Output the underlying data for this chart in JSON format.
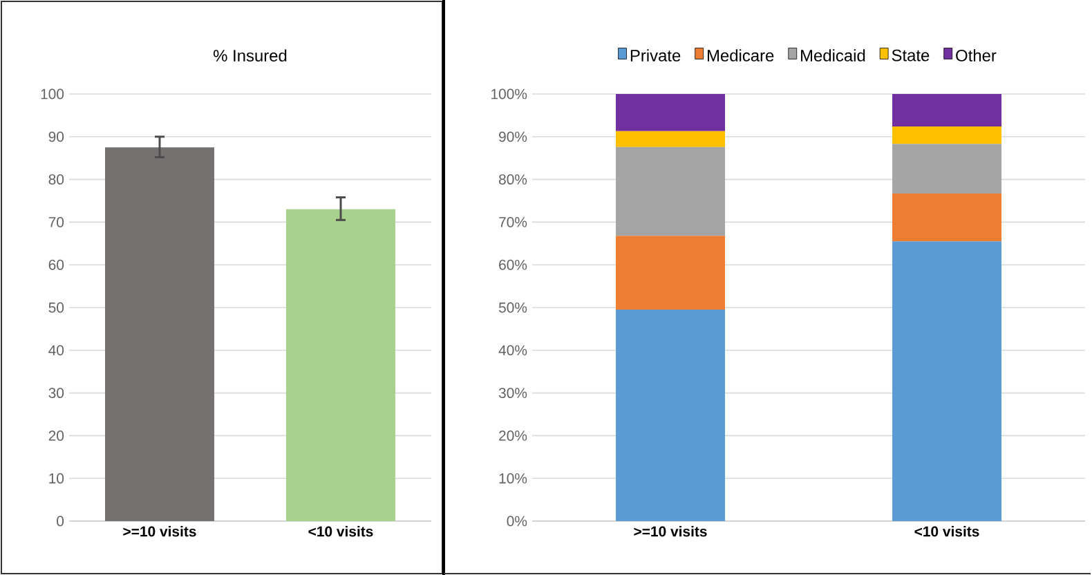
{
  "chart_data": [
    {
      "type": "bar",
      "title": "% Insured",
      "categories": [
        ">=10 visits",
        "<10 visits"
      ],
      "values": [
        87.5,
        73
      ],
      "colors": [
        "#767171",
        "#a9d18e"
      ],
      "errors": [
        [
          85.2,
          90
        ],
        [
          70.5,
          75.8
        ]
      ],
      "ylim": [
        0,
        100
      ],
      "yticks": [
        0,
        10,
        20,
        30,
        40,
        50,
        60,
        70,
        80,
        90,
        100
      ],
      "grid": "y"
    },
    {
      "type": "bar",
      "stacked": true,
      "categories": [
        ">=10 visits",
        "<10 visits"
      ],
      "series": [
        {
          "name": "Private",
          "color": "#5b9bd5",
          "values": [
            49.5,
            65.5
          ]
        },
        {
          "name": "Medicare",
          "color": "#ed7d31",
          "values": [
            17.3,
            11.2
          ]
        },
        {
          "name": "Medicaid",
          "color": "#a5a5a5",
          "values": [
            20.8,
            11.6
          ]
        },
        {
          "name": "State",
          "color": "#ffc000",
          "values": [
            3.7,
            4.1
          ]
        },
        {
          "name": "Other",
          "color": "#7030a0",
          "values": [
            8.7,
            7.6
          ]
        }
      ],
      "ylim": [
        0,
        100
      ],
      "yticks": [
        {
          "value": 0,
          "label": "0%"
        },
        {
          "value": 10,
          "label": "10%"
        },
        {
          "value": 20,
          "label": "20%"
        },
        {
          "value": 30,
          "label": "30%"
        },
        {
          "value": 40,
          "label": "40%"
        },
        {
          "value": 50,
          "label": "50%"
        },
        {
          "value": 60,
          "label": "60%"
        },
        {
          "value": 70,
          "label": "70%"
        },
        {
          "value": 80,
          "label": "80%"
        },
        {
          "value": 90,
          "label": "90%"
        },
        {
          "value": 100,
          "label": "100%"
        }
      ],
      "grid": "y",
      "legend": "top"
    }
  ]
}
